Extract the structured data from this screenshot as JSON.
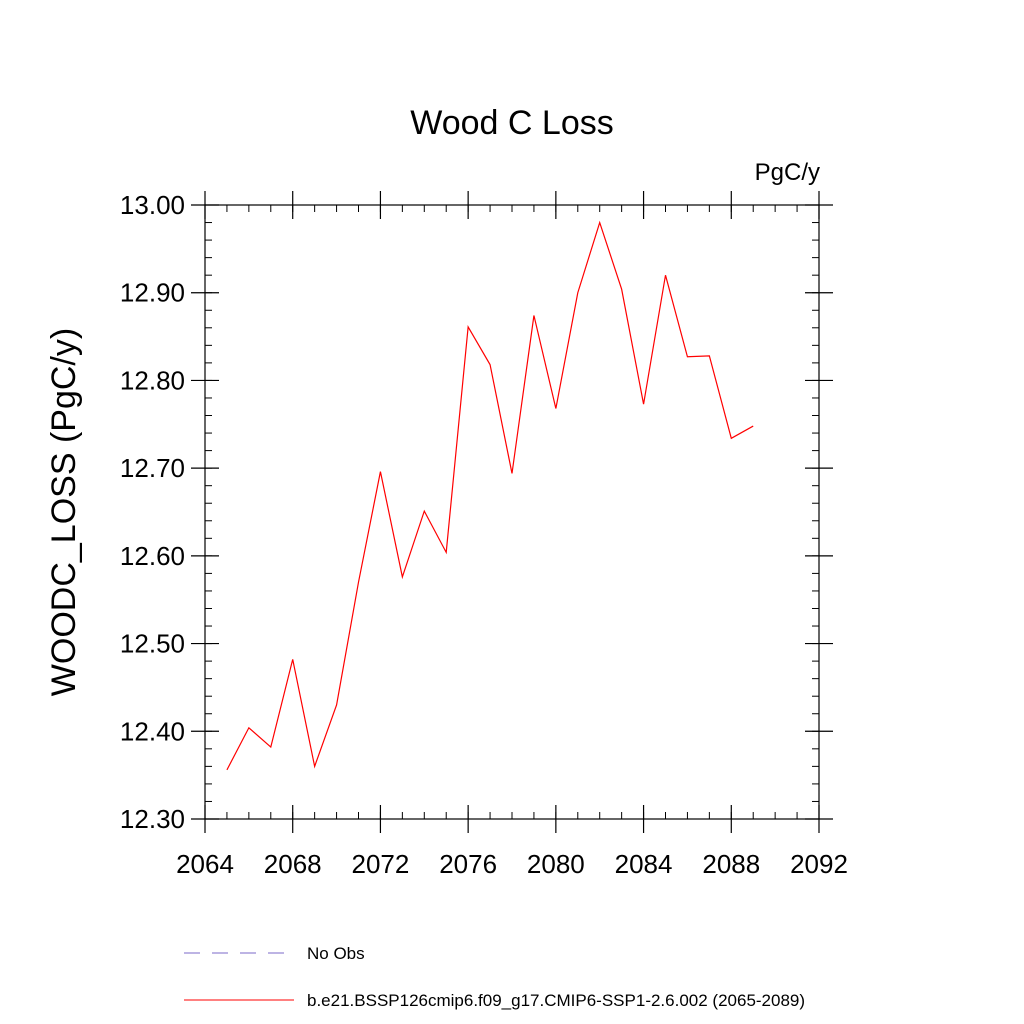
{
  "chart_data": {
    "type": "line",
    "title": "Wood C Loss",
    "units_label": "PgC/y",
    "xlabel": "",
    "ylabel": "WOODC_LOSS  (PgC/y)",
    "xlim": [
      2064,
      2092
    ],
    "ylim": [
      12.3,
      13.0
    ],
    "x_ticks": [
      2064,
      2068,
      2072,
      2076,
      2080,
      2084,
      2088,
      2092
    ],
    "x_minor_step": 1,
    "y_ticks": [
      "12.30",
      "12.40",
      "12.50",
      "12.60",
      "12.70",
      "12.80",
      "12.90",
      "13.00"
    ],
    "y_minor_step": 0.02,
    "grid": false,
    "legend_position": "bottom",
    "series": [
      {
        "name": "b.e21.BSSP126cmip6.f09_g17.CMIP6-SSP1-2.6.002 (2065-2089)",
        "color": "#ff0000",
        "dash": "solid",
        "x": [
          2065,
          2066,
          2067,
          2068,
          2069,
          2070,
          2071,
          2072,
          2073,
          2074,
          2075,
          2076,
          2077,
          2078,
          2079,
          2080,
          2081,
          2082,
          2083,
          2084,
          2085,
          2086,
          2087,
          2088,
          2089
        ],
        "values": [
          12.356,
          12.404,
          12.382,
          12.482,
          12.36,
          12.43,
          12.57,
          12.696,
          12.576,
          12.651,
          12.604,
          12.861,
          12.818,
          12.694,
          12.874,
          12.768,
          12.9,
          12.98,
          12.904,
          12.773,
          12.92,
          12.827,
          12.828,
          12.734,
          12.748
        ]
      }
    ],
    "legend": [
      {
        "label": "No Obs",
        "color": "#7b68c8",
        "dash": "dashed"
      },
      {
        "label": "b.e21.BSSP126cmip6.f09_g17.CMIP6-SSP1-2.6.002 (2065-2089)",
        "color": "#ff0000",
        "dash": "solid"
      }
    ]
  }
}
